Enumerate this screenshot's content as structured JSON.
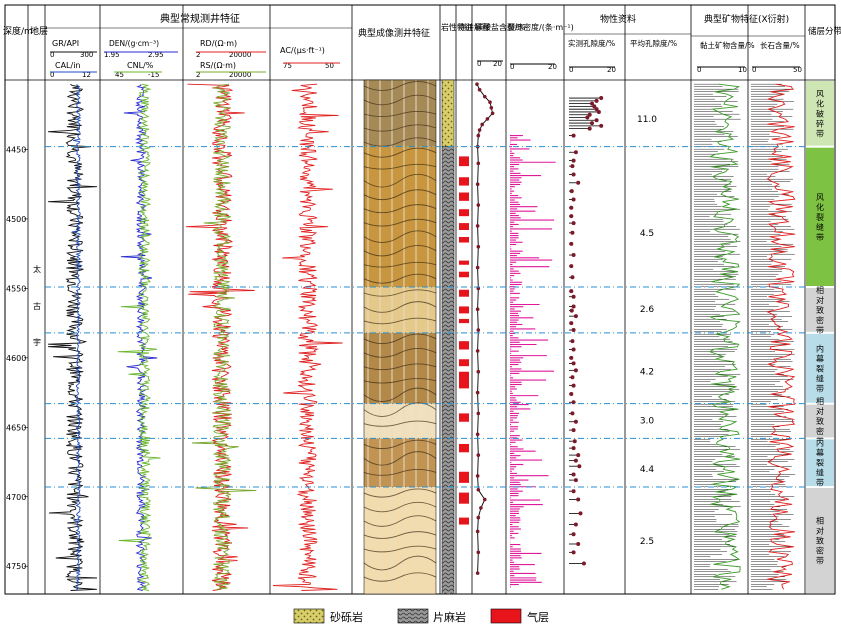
{
  "header": {
    "depth": "深度/m",
    "layer": "地层",
    "logging_group": "典型常规测井特征",
    "imaging": "典型成像测井特征",
    "lithology": "岩性特征",
    "interpretation": "测井解释",
    "carbonate": "碳酸盐含量/%",
    "fracture": "裂缝密度/(条·m⁻¹)",
    "physical_group": "物性资料",
    "measured_porosity": "实测孔隙度/%",
    "avg_porosity": "平均孔隙度/%",
    "mineral_group": "典型矿物特征(X衍射)",
    "clay": "黏土矿物含量/%",
    "feldspar": "长石含量/%",
    "reservoir": "储层分带"
  },
  "tracks": {
    "gr": {
      "label": "GR/API",
      "min": "0",
      "max": "300"
    },
    "cal": {
      "label": "CAL/in",
      "min": "0",
      "max": "12"
    },
    "den": {
      "label": "DEN/(g·cm⁻³)",
      "min": "1.95",
      "max": "2.95"
    },
    "cnl": {
      "label": "CNL/%",
      "min": "45",
      "max": "-15"
    },
    "rd": {
      "label": "RD/(Ω·m)",
      "min": "2",
      "max": "20000"
    },
    "rs": {
      "label": "RS/(Ω·m)",
      "min": "2",
      "max": "20000"
    },
    "ac": {
      "label": "AC/(μs·ft⁻¹)",
      "min": "75",
      "max": "50"
    },
    "carb_scale": {
      "min": "0",
      "max": "20"
    },
    "frac_scale": {
      "min": "0",
      "max": "20"
    },
    "por_scale": {
      "min": "0",
      "max": "20"
    },
    "clay_scale": {
      "min": "0",
      "max": "10"
    },
    "feld_scale": {
      "min": "0",
      "max": "50"
    }
  },
  "stratum": [
    "太",
    "古",
    "宇"
  ],
  "legend": {
    "sand": "砂砾岩",
    "gneiss": "片麻岩",
    "gas": "气层"
  },
  "colors": {
    "gr": "#111111",
    "cal": "#1f4fbf",
    "den": "#2b2bd0",
    "cnl": "#6ab82e",
    "rd": "#e02020",
    "rs": "#7aa82e",
    "ac": "#e02020",
    "frac": "#e0189a",
    "gas": "#e8141c",
    "sand": "#d8cf6a",
    "zone_green": "#7dc242",
    "zone_light": "#cde6b3",
    "zone_blue": "#b8dce8",
    "zone_gray": "#d3d3d3"
  },
  "chart_data": {
    "type": "table",
    "depth_axis": {
      "min": 4400,
      "max": 4770,
      "ticks": [
        4450,
        4500,
        4550,
        4600,
        4650,
        4700,
        4750
      ]
    },
    "zone_boundaries": [
      4448,
      4549,
      4582,
      4633,
      4658,
      4693,
      4775
    ],
    "avg_porosity": [
      {
        "depth": 4428,
        "value": "11.0"
      },
      {
        "depth": 4510,
        "value": "4.5"
      },
      {
        "depth": 4565,
        "value": "2.6"
      },
      {
        "depth": 4610,
        "value": "4.2"
      },
      {
        "depth": 4645,
        "value": "3.0"
      },
      {
        "depth": 4680,
        "value": "4.4"
      },
      {
        "depth": 4732,
        "value": "2.5"
      }
    ],
    "reservoir_zones": [
      {
        "top": 4400,
        "bottom": 4448,
        "label": "风化破碎带",
        "color": "zone_light"
      },
      {
        "top": 4448,
        "bottom": 4549,
        "label": "风化裂缝带",
        "color": "zone_green"
      },
      {
        "top": 4549,
        "bottom": 4582,
        "label": "相对致密带",
        "color": "zone_gray"
      },
      {
        "top": 4582,
        "bottom": 4633,
        "label": "内幕裂缝带",
        "color": "zone_blue"
      },
      {
        "top": 4633,
        "bottom": 4658,
        "label": "相对致密带",
        "color": "zone_gray"
      },
      {
        "top": 4658,
        "bottom": 4693,
        "label": "内幕裂缝带",
        "color": "zone_blue"
      },
      {
        "top": 4693,
        "bottom": 4770,
        "label": "相对致密带",
        "color": "zone_gray"
      }
    ],
    "lithology": [
      {
        "top": 4400,
        "bottom": 4448,
        "type": "sand"
      },
      {
        "top": 4448,
        "bottom": 4770,
        "type": "gneiss"
      }
    ],
    "gas_layers": [
      [
        4455,
        4462
      ],
      [
        4470,
        4476
      ],
      [
        4481,
        4487
      ],
      [
        4493,
        4498
      ],
      [
        4503,
        4508
      ],
      [
        4513,
        4517
      ],
      [
        4530,
        4533
      ],
      [
        4538,
        4542
      ],
      [
        4551,
        4556
      ],
      [
        4563,
        4568
      ],
      [
        4572,
        4575
      ],
      [
        4588,
        4594
      ],
      [
        4601,
        4606
      ],
      [
        4610,
        4622
      ],
      [
        4640,
        4646
      ],
      [
        4662,
        4668
      ],
      [
        4682,
        4690
      ],
      [
        4697,
        4705
      ],
      [
        4715,
        4720
      ]
    ],
    "measured_porosity": [
      [
        4413,
        14
      ],
      [
        4415,
        12
      ],
      [
        4417,
        10
      ],
      [
        4419,
        11
      ],
      [
        4421,
        12
      ],
      [
        4423,
        13
      ],
      [
        4425,
        9
      ],
      [
        4427,
        8
      ],
      [
        4429,
        12
      ],
      [
        4431,
        10
      ],
      [
        4433,
        14
      ],
      [
        4435,
        9
      ],
      [
        4440,
        2
      ],
      [
        4452,
        3
      ],
      [
        4458,
        2
      ],
      [
        4462,
        1.5
      ],
      [
        4468,
        2
      ],
      [
        4474,
        4
      ],
      [
        4480,
        1.2
      ],
      [
        4486,
        2
      ],
      [
        4492,
        1
      ],
      [
        4498,
        1
      ],
      [
        4503,
        2
      ],
      [
        4510,
        1.5
      ],
      [
        4518,
        1
      ],
      [
        4526,
        2
      ],
      [
        4534,
        1
      ],
      [
        4542,
        1.5
      ],
      [
        4552,
        1
      ],
      [
        4556,
        2
      ],
      [
        4563,
        2
      ],
      [
        4566,
        1.2
      ],
      [
        4570,
        3
      ],
      [
        4575,
        1
      ],
      [
        4580,
        2
      ],
      [
        4588,
        1.5
      ],
      [
        4594,
        2
      ],
      [
        4600,
        1
      ],
      [
        4604,
        2
      ],
      [
        4609,
        3
      ],
      [
        4614,
        1.5
      ],
      [
        4620,
        2
      ],
      [
        4626,
        1
      ],
      [
        4632,
        2
      ],
      [
        4640,
        1.5
      ],
      [
        4646,
        3
      ],
      [
        4652,
        2
      ],
      [
        4660,
        2.5
      ],
      [
        4665,
        2
      ],
      [
        4670,
        4
      ],
      [
        4674,
        3
      ],
      [
        4678,
        4.5
      ],
      [
        4684,
        2
      ],
      [
        4688,
        3
      ],
      [
        4696,
        2
      ],
      [
        4702,
        4
      ],
      [
        4712,
        5
      ],
      [
        4720,
        3
      ],
      [
        4727,
        2
      ],
      [
        4734,
        4
      ],
      [
        4740,
        2
      ],
      [
        4748,
        6.5
      ]
    ],
    "carbonate": [
      [
        4403,
        0
      ],
      [
        4407,
        2
      ],
      [
        4412,
        6
      ],
      [
        4416,
        10
      ],
      [
        4420,
        11
      ],
      [
        4424,
        12
      ],
      [
        4428,
        8
      ],
      [
        4432,
        4
      ],
      [
        4436,
        2
      ],
      [
        4440,
        1
      ],
      [
        4448,
        0.5
      ],
      [
        4460,
        1
      ],
      [
        4475,
        0.5
      ],
      [
        4490,
        1
      ],
      [
        4505,
        0.5
      ],
      [
        4520,
        1
      ],
      [
        4535,
        0.5
      ],
      [
        4550,
        1
      ],
      [
        4565,
        0.5
      ],
      [
        4580,
        1
      ],
      [
        4595,
        0.5
      ],
      [
        4610,
        1
      ],
      [
        4625,
        0.5
      ],
      [
        4640,
        1
      ],
      [
        4655,
        0.5
      ],
      [
        4670,
        1
      ],
      [
        4685,
        0.5
      ],
      [
        4695,
        1
      ],
      [
        4702,
        6
      ],
      [
        4708,
        3
      ],
      [
        4715,
        1
      ],
      [
        4725,
        0.5
      ],
      [
        4740,
        1
      ],
      [
        4755,
        0.5
      ]
    ]
  }
}
